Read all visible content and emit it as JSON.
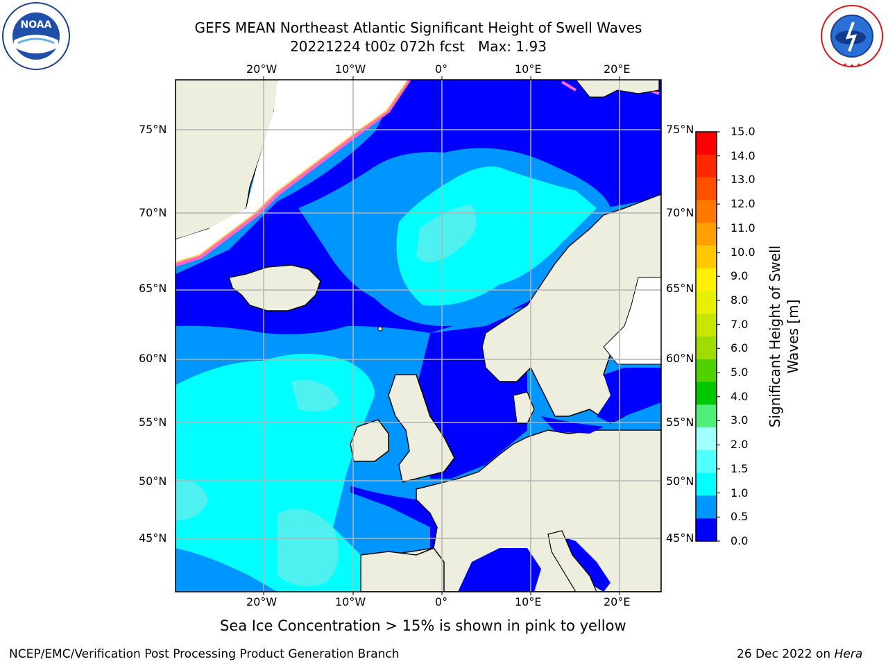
{
  "title": {
    "line1": "GEFS MEAN Northeast Atlantic Significant Height of Swell Waves",
    "line2": "20221224 t00z 072h fcst   Max: 1.93"
  },
  "logos": {
    "left": {
      "icon": "noaa-logo",
      "text": "NOAA"
    },
    "right": {
      "icon": "nws-logo",
      "text": "NATIONAL WEATHER SERVICE"
    }
  },
  "map": {
    "lon_labels": [
      "20°W",
      "10°W",
      "0°",
      "10°E",
      "20°E"
    ],
    "lat_labels_left": [
      "75°N",
      "70°N",
      "65°N",
      "60°N",
      "55°N",
      "50°N",
      "45°N"
    ],
    "lat_labels_right": [
      "75°N",
      "70°N",
      "65°N",
      "60°N",
      "55°N",
      "50°N",
      "45°N"
    ]
  },
  "colorbar": {
    "title_line1": "Significant Height of Swell",
    "title_line2": "Waves [m]",
    "ticks": [
      "15.0",
      "14.0",
      "13.0",
      "12.0",
      "11.0",
      "10.0",
      "9.0",
      "8.0",
      "7.0",
      "6.0",
      "5.0",
      "4.0",
      "3.0",
      "2.0",
      "1.5",
      "1.0",
      "0.5",
      "0.0"
    ],
    "colors": [
      "#ff0000",
      "#ff2800",
      "#ff5000",
      "#ff7800",
      "#ffa000",
      "#ffc800",
      "#fff000",
      "#e6f000",
      "#c8e600",
      "#a0dc00",
      "#50d200",
      "#00c800",
      "#50f078",
      "#a0ffff",
      "#50ffff",
      "#00ffff",
      "#0096ff",
      "#0000ff"
    ]
  },
  "caption": "Sea Ice Concentration > 15% is shown in pink to yellow",
  "footer": {
    "left": "NCEP/EMC/Verification Post Processing Product Generation Branch",
    "right_prefix": "26 Dec 2022 on ",
    "right_host": "Hera"
  }
}
